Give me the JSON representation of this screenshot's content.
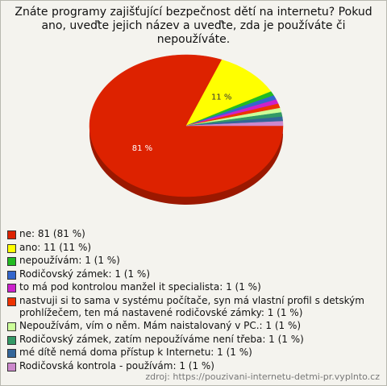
{
  "chart_data": {
    "type": "pie",
    "title": "Znáte programy zajišťující bezpečnost dětí na internetu? Pokud ano, uveďte jejich název a uveďte, zda je používáte či nepoužíváte.",
    "categories": [
      "ne: 81 (81 %)",
      "ano: 11 (11 %)",
      "nepoužívám: 1 (1 %)",
      "Rodičovský zámek: 1 (1 %)",
      "to má pod kontrolou manžel it specialista: 1 (1 %)",
      "nastvuji si to sama v systému počítače, syn má vlastní profil s detským prohlížečem, ten má nastavené rodičovské zámky: 1 (1 %)",
      "Nepoužívám, vím o něm. Mám naistalovaný v PC.: 1 (1 %)",
      "Rodičovský zámek, zatím nepoužíváme není třeba: 1 (1 %)",
      "mé dítě nemá doma přístup k Internetu: 1 (1 %)",
      "Rodičovská kontrola - používám: 1 (1 %)"
    ],
    "values": [
      81,
      11,
      1,
      1,
      1,
      1,
      1,
      1,
      1,
      1
    ],
    "value_labels": [
      "81 %",
      "11 %",
      null,
      null,
      null,
      null,
      null,
      null,
      null,
      null
    ],
    "colors": [
      "#dd2200",
      "#ffff00",
      "#22bb22",
      "#3366cc",
      "#cc22cc",
      "#ee3300",
      "#ccff99",
      "#339966",
      "#336699",
      "#cc88cc"
    ],
    "source": "zdroj: https://pouzivani-internetu-detmi-pr.vyplnto.cz"
  }
}
